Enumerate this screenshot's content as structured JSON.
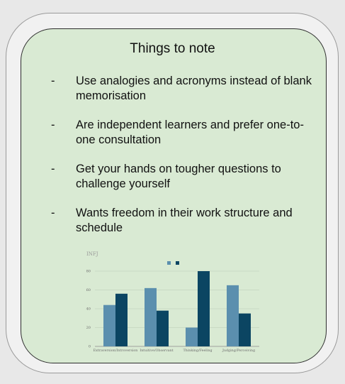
{
  "title": "Things to note",
  "notes": [
    {
      "bullet": "-",
      "text": "Use analogies and acronyms instead of blank memorisation"
    },
    {
      "bullet": "-",
      "text": "Are independent learners and prefer one-to-one consultation"
    },
    {
      "bullet": "-",
      "text": "Get your hands on tougher questions to challenge yourself"
    },
    {
      "bullet": "-",
      "text": "Wants freedom in their work structure and schedule"
    }
  ],
  "chart_data": {
    "type": "bar",
    "title": "INFJ",
    "categories": [
      "Extraversion/Introversion",
      "Intuitive/Observant",
      "Thinking/Feeling",
      "Judging/Perceiving"
    ],
    "series": [
      {
        "color": "#5b8fae",
        "values": [
          44,
          62,
          20,
          65
        ]
      },
      {
        "color": "#0b4562",
        "values": [
          56,
          38,
          80,
          35
        ]
      }
    ],
    "ylim": [
      0,
      80
    ],
    "yticks": [
      0,
      20,
      40,
      60,
      80
    ],
    "grid": true,
    "legend": "top-center"
  }
}
